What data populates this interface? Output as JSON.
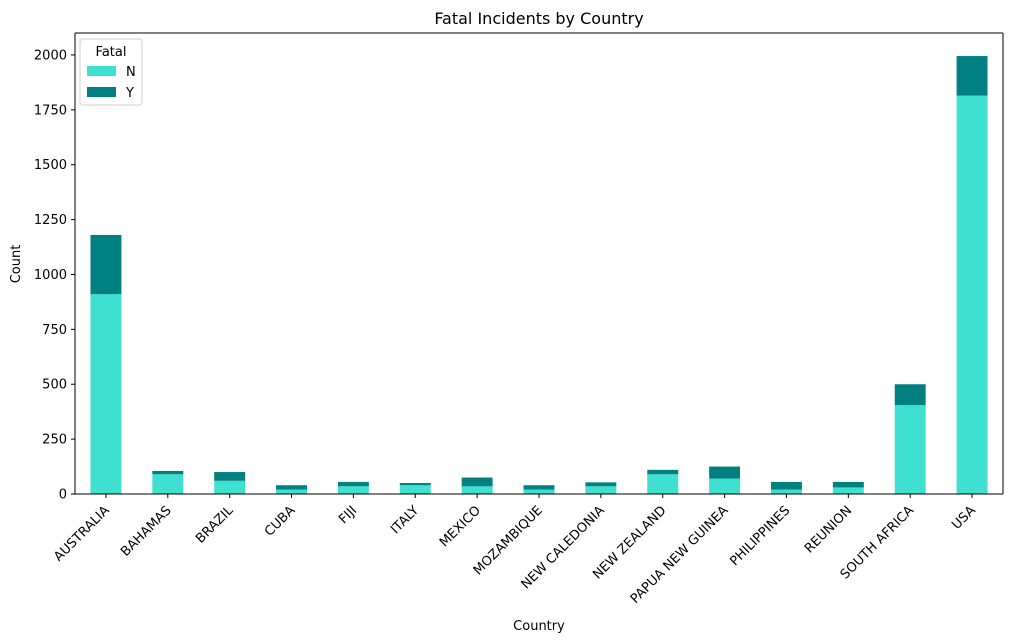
{
  "chart_data": {
    "type": "bar",
    "stacked": true,
    "title": "Fatal Incidents by Country",
    "xlabel": "Country",
    "ylabel": "Count",
    "ylim": [
      0,
      2100
    ],
    "yticks": [
      0,
      250,
      500,
      750,
      1000,
      1250,
      1500,
      1750,
      2000
    ],
    "grid": false,
    "legend": {
      "title": "Fatal",
      "placement": "top-left"
    },
    "categories": [
      "AUSTRALIA",
      "BAHAMAS",
      "BRAZIL",
      "CUBA",
      "FIJI",
      "ITALY",
      "MEXICO",
      "MOZAMBIQUE",
      "NEW CALEDONIA",
      "NEW ZEALAND",
      "PAPUA NEW GUINEA",
      "PHILIPPINES",
      "REUNION",
      "SOUTH AFRICA",
      "USA"
    ],
    "series": [
      {
        "name": "N",
        "color": "#40e0d0",
        "values": [
          910,
          90,
          60,
          20,
          35,
          40,
          35,
          20,
          35,
          90,
          70,
          20,
          30,
          405,
          1815
        ]
      },
      {
        "name": "Y",
        "color": "#008080",
        "values": [
          270,
          15,
          40,
          20,
          20,
          10,
          40,
          20,
          18,
          20,
          55,
          35,
          25,
          95,
          180
        ]
      }
    ]
  }
}
